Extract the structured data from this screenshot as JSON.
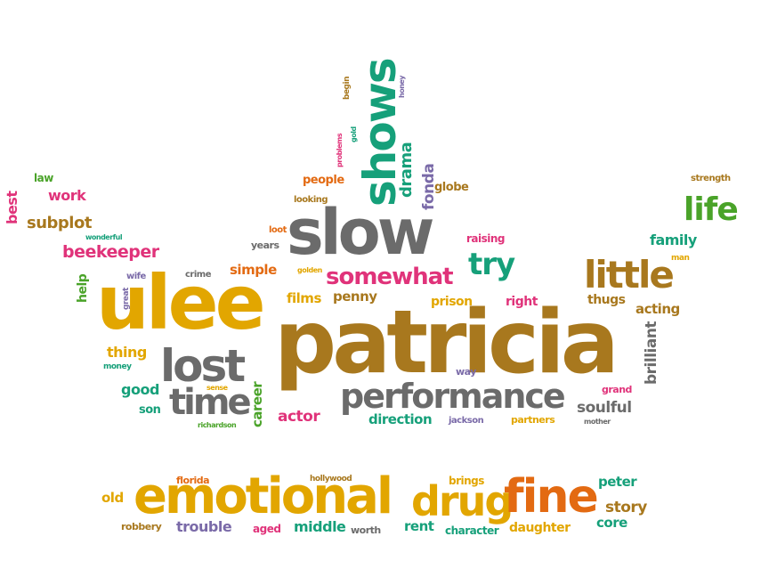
{
  "palette": {
    "gold": "#e2a600",
    "brown": "#a8781e",
    "gray": "#6b6b6b",
    "teal": "#16a07a",
    "magenta": "#e0337a",
    "green": "#4aa329",
    "orange": "#e36a12",
    "purple": "#7a6aa8"
  },
  "words": {
    "patricia": "patricia",
    "ulee": "ulee",
    "slow": "slow",
    "shows": "shows",
    "lost": "lost",
    "time": "time",
    "performance": "performance",
    "emotional": "emotional",
    "drug": "drug",
    "fine": "fine",
    "little": "little",
    "life": "life",
    "somewhat": "somewhat",
    "try": "try",
    "drama": "drama",
    "fonda": "fonda",
    "globe": "globe",
    "people": "people",
    "looking": "looking",
    "loot": "loot",
    "years": "years",
    "raising": "raising",
    "golden": "golden",
    "simple": "simple",
    "crime": "crime",
    "films": "films",
    "penny": "penny",
    "prison": "prison",
    "right": "right",
    "thugs": "thugs",
    "acting": "acting",
    "brilliant": "brilliant",
    "family": "family",
    "man": "man",
    "strength": "strength",
    "best": "best",
    "law": "law",
    "work": "work",
    "subplot": "subplot",
    "wonderful": "wonderful",
    "beekeeper": "beekeeper",
    "help": "help",
    "wife": "wife",
    "great": "great",
    "thing": "thing",
    "money": "money",
    "good": "good",
    "son": "son",
    "sense": "sense",
    "richardson": "richardson",
    "career": "career",
    "actor": "actor",
    "direction": "direction",
    "way": "way",
    "jackson": "jackson",
    "partners": "partners",
    "grand": "grand",
    "soulful": "soulful",
    "mother": "mother",
    "begin": "begin",
    "honey": "honey",
    "problems": "problems",
    "gold": "gold",
    "florida": "florida",
    "hollywood": "hollywood",
    "brings": "brings",
    "peter": "peter",
    "old": "old",
    "story": "story",
    "core": "core",
    "robbery": "robbery",
    "trouble": "trouble",
    "aged": "aged",
    "middle": "middle",
    "worth": "worth",
    "rent": "rent",
    "character": "character",
    "daughter": "daughter"
  }
}
